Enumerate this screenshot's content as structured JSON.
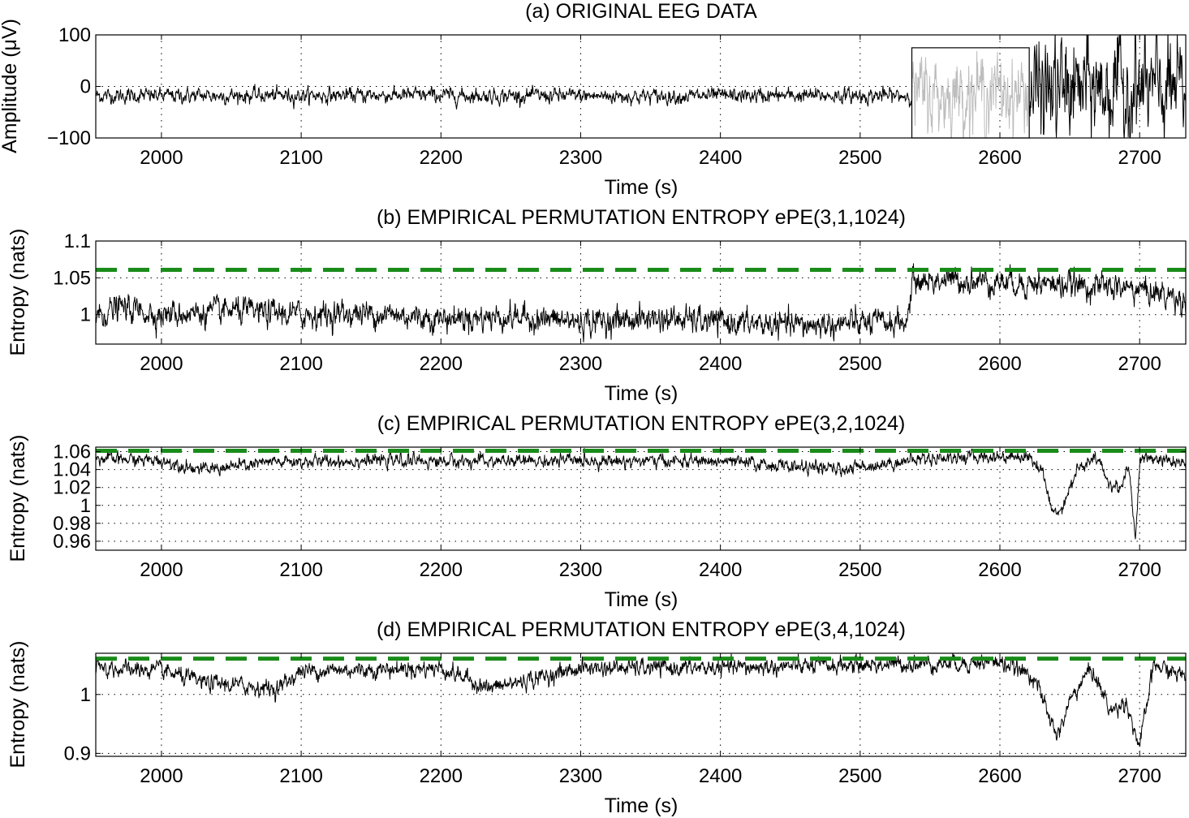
{
  "figure": {
    "background": "#ffffff",
    "signal_color": "#000000",
    "highlight_color": "#bdbdbd",
    "threshold_color": "#1a8c1a"
  },
  "chart_data": [
    {
      "id": "a",
      "type": "line",
      "title": "(a) ORIGINAL EEG DATA",
      "xlabel": "Time (s)",
      "ylabel": "Amplitude (μV)",
      "xlim": [
        1953,
        2733
      ],
      "ylim": [
        -100,
        100
      ],
      "xticks": [
        2000,
        2100,
        2200,
        2300,
        2400,
        2500,
        2600,
        2700
      ],
      "yticks": [
        -100,
        0,
        100
      ],
      "yticklabels": [
        "−100",
        "0",
        "100"
      ],
      "grid": "dotted",
      "series": [
        {
          "x": [
            1953,
            2050,
            2150,
            2250,
            2350,
            2450,
            2537
          ],
          "y": [
            -18,
            -18,
            -17,
            -18,
            -19,
            -18,
            -18
          ],
          "noise": 8,
          "color": "#000000"
        },
        {
          "x": [
            2537,
            2560,
            2580,
            2600,
            2621
          ],
          "y": [
            -15,
            -18,
            -10,
            -12,
            -15
          ],
          "noise": 40,
          "color": "#bdbdbd"
        },
        {
          "x": [
            2621,
            2650,
            2680,
            2710,
            2733
          ],
          "y": [
            -10,
            -5,
            -5,
            -8,
            -10
          ],
          "noise": 55,
          "color": "#000000"
        }
      ],
      "highlight_box": {
        "x": [
          2537,
          2621
        ],
        "y": [
          -100,
          75
        ],
        "label": ""
      }
    },
    {
      "id": "b",
      "type": "line",
      "title": "(b) EMPIRICAL PERMUTATION ENTROPY ePE(3,1,1024)",
      "xlabel": "Time (s)",
      "ylabel": "Entropy (nats)",
      "xlim": [
        1953,
        2733
      ],
      "ylim": [
        0.96,
        1.1
      ],
      "xticks": [
        2000,
        2100,
        2200,
        2300,
        2400,
        2500,
        2600,
        2700
      ],
      "yticks": [
        1.0,
        1.05,
        1.1
      ],
      "yticklabels": [
        "1",
        "1.05",
        "1.1"
      ],
      "grid": "dotted",
      "threshold": 1.0609,
      "series": [
        {
          "x": [
            1953,
            1970,
            2000,
            2050,
            2100,
            2150,
            2200,
            2250,
            2300,
            2350,
            2400,
            2450,
            2500,
            2534,
            2537,
            2560,
            2600,
            2650,
            2700,
            2733
          ],
          "y": [
            0.998,
            1.01,
            1.0,
            1.005,
            1.0,
            1.002,
            0.995,
            0.997,
            0.99,
            0.995,
            0.99,
            0.985,
            0.988,
            0.99,
            1.045,
            1.047,
            1.045,
            1.04,
            1.035,
            1.02
          ],
          "noise": 0.01,
          "color": "#000000"
        }
      ]
    },
    {
      "id": "c",
      "type": "line",
      "title": "(c) EMPIRICAL PERMUTATION ENTROPY ePE(3,2,1024)",
      "xlabel": "Time (s)",
      "ylabel": "Entropy (nats)",
      "xlim": [
        1953,
        2733
      ],
      "ylim": [
        0.95,
        1.065
      ],
      "xticks": [
        2000,
        2100,
        2200,
        2300,
        2400,
        2500,
        2600,
        2700
      ],
      "yticks": [
        0.96,
        0.98,
        1.0,
        1.02,
        1.04,
        1.06
      ],
      "yticklabels": [
        "0.96",
        "0.98",
        "1",
        "1.02",
        "1.04",
        "1.06"
      ],
      "grid": "dotted",
      "threshold": 1.0609,
      "series": [
        {
          "x": [
            1953,
            2000,
            2030,
            2080,
            2150,
            2250,
            2300,
            2400,
            2485,
            2550,
            2620,
            2630,
            2638,
            2645,
            2655,
            2670,
            2680,
            2687,
            2692,
            2697,
            2700,
            2710,
            2733
          ],
          "y": [
            1.052,
            1.05,
            1.04,
            1.048,
            1.05,
            1.049,
            1.05,
            1.049,
            1.04,
            1.053,
            1.055,
            1.04,
            0.99,
            1.0,
            1.04,
            1.052,
            1.02,
            1.02,
            1.05,
            0.96,
            1.05,
            1.053,
            1.045
          ],
          "noise": 0.004,
          "color": "#000000"
        }
      ]
    },
    {
      "id": "d",
      "type": "line",
      "title": "(d) EMPIRICAL PERMUTATION ENTROPY ePE(3,4,1024)",
      "xlabel": "Time (s)",
      "ylabel": "Entropy (nats)",
      "xlim": [
        1953,
        2733
      ],
      "ylim": [
        0.895,
        1.07
      ],
      "xticks": [
        2000,
        2100,
        2200,
        2300,
        2400,
        2500,
        2600,
        2700
      ],
      "yticks": [
        0.9,
        1.0
      ],
      "yticklabels": [
        "0.9",
        "1"
      ],
      "grid": "dotted",
      "threshold": 1.0609,
      "series": [
        {
          "x": [
            1953,
            2000,
            2030,
            2083,
            2100,
            2200,
            2235,
            2300,
            2400,
            2500,
            2600,
            2625,
            2635,
            2642,
            2650,
            2665,
            2680,
            2690,
            2700,
            2710,
            2733
          ],
          "y": [
            1.045,
            1.04,
            1.02,
            1.01,
            1.04,
            1.045,
            1.01,
            1.045,
            1.045,
            1.05,
            1.055,
            1.03,
            0.96,
            0.93,
            0.99,
            1.045,
            0.97,
            0.99,
            0.91,
            1.05,
            1.03
          ],
          "noise": 0.008,
          "color": "#000000"
        }
      ]
    }
  ]
}
